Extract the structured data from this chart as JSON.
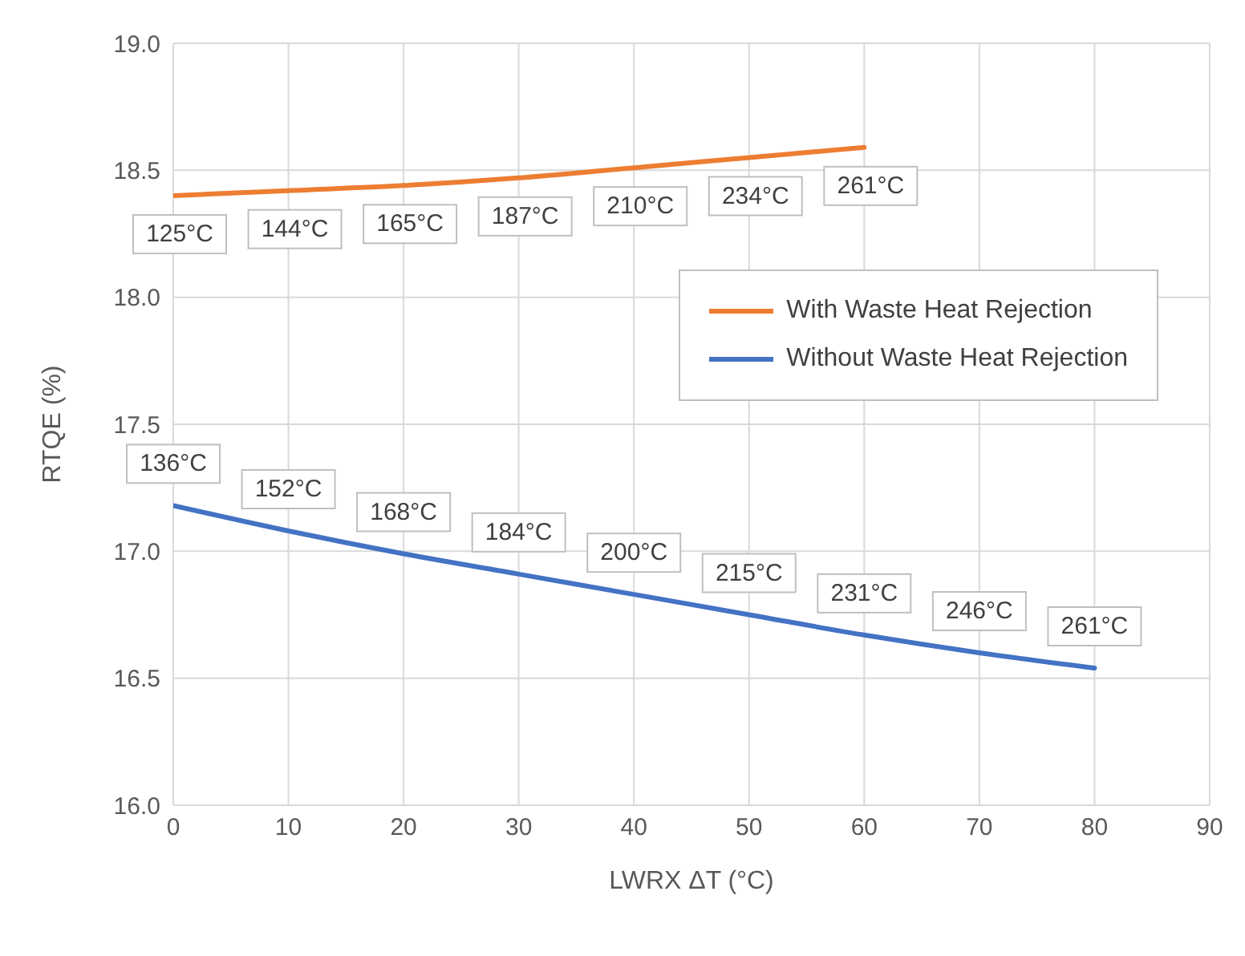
{
  "chart_data": {
    "type": "line",
    "xlabel": "LWRX ΔT (°C)",
    "ylabel": "RTQE (%)",
    "x": [
      0,
      10,
      20,
      30,
      40,
      50,
      60,
      70,
      80
    ],
    "xlim": [
      0,
      90
    ],
    "xticks": [
      0,
      10,
      20,
      30,
      40,
      50,
      60,
      70,
      80,
      90
    ],
    "ylim": [
      16,
      19
    ],
    "yticks": [
      {
        "value": 16,
        "label": "16.0"
      },
      {
        "value": 16.5,
        "label": "16.5"
      },
      {
        "value": 17,
        "label": "17.0"
      },
      {
        "value": 17.5,
        "label": "17.5"
      },
      {
        "value": 18,
        "label": "18.0"
      },
      {
        "value": 18.5,
        "label": "18.5"
      },
      {
        "value": 19,
        "label": "19.0"
      }
    ],
    "grid": true,
    "legend": "top right",
    "marker": "none",
    "line_style": "solid",
    "series": [
      {
        "name": "With Waste Heat Rejection",
        "color": "#ed7d31",
        "values": [
          18.4,
          18.42,
          18.44,
          18.47,
          18.51,
          18.55,
          18.59,
          null,
          null
        ]
      },
      {
        "name": "Without Waste Heat Rejection",
        "color": "#4472c4",
        "values": [
          17.18,
          17.08,
          16.99,
          16.91,
          16.83,
          16.75,
          16.67,
          16.6,
          16.54
        ]
      }
    ],
    "annotations": [
      {
        "text": "125°C",
        "x": 0,
        "y": 18.4
      },
      {
        "text": "144°C",
        "x": 10,
        "y": 18.42
      },
      {
        "text": "165°C",
        "x": 20,
        "y": 18.44
      },
      {
        "text": "187°C",
        "x": 30,
        "y": 18.47
      },
      {
        "text": "210°C",
        "x": 40,
        "y": 18.51
      },
      {
        "text": "234°C",
        "x": 50,
        "y": 18.55
      },
      {
        "text": "261°C",
        "x": 60,
        "y": 18.59
      },
      {
        "text": "136°C",
        "x": 0,
        "y": 17.18
      },
      {
        "text": "152°C",
        "x": 10,
        "y": 17.08
      },
      {
        "text": "168°C",
        "x": 20,
        "y": 16.99
      },
      {
        "text": "184°C",
        "x": 30,
        "y": 16.91
      },
      {
        "text": "200°C",
        "x": 40,
        "y": 16.83
      },
      {
        "text": "215°C",
        "x": 50,
        "y": 16.75
      },
      {
        "text": "231°C",
        "x": 60,
        "y": 16.67
      },
      {
        "text": "246°C",
        "x": 70,
        "y": 16.6
      },
      {
        "text": "261°C",
        "x": 80,
        "y": 16.54
      }
    ]
  }
}
